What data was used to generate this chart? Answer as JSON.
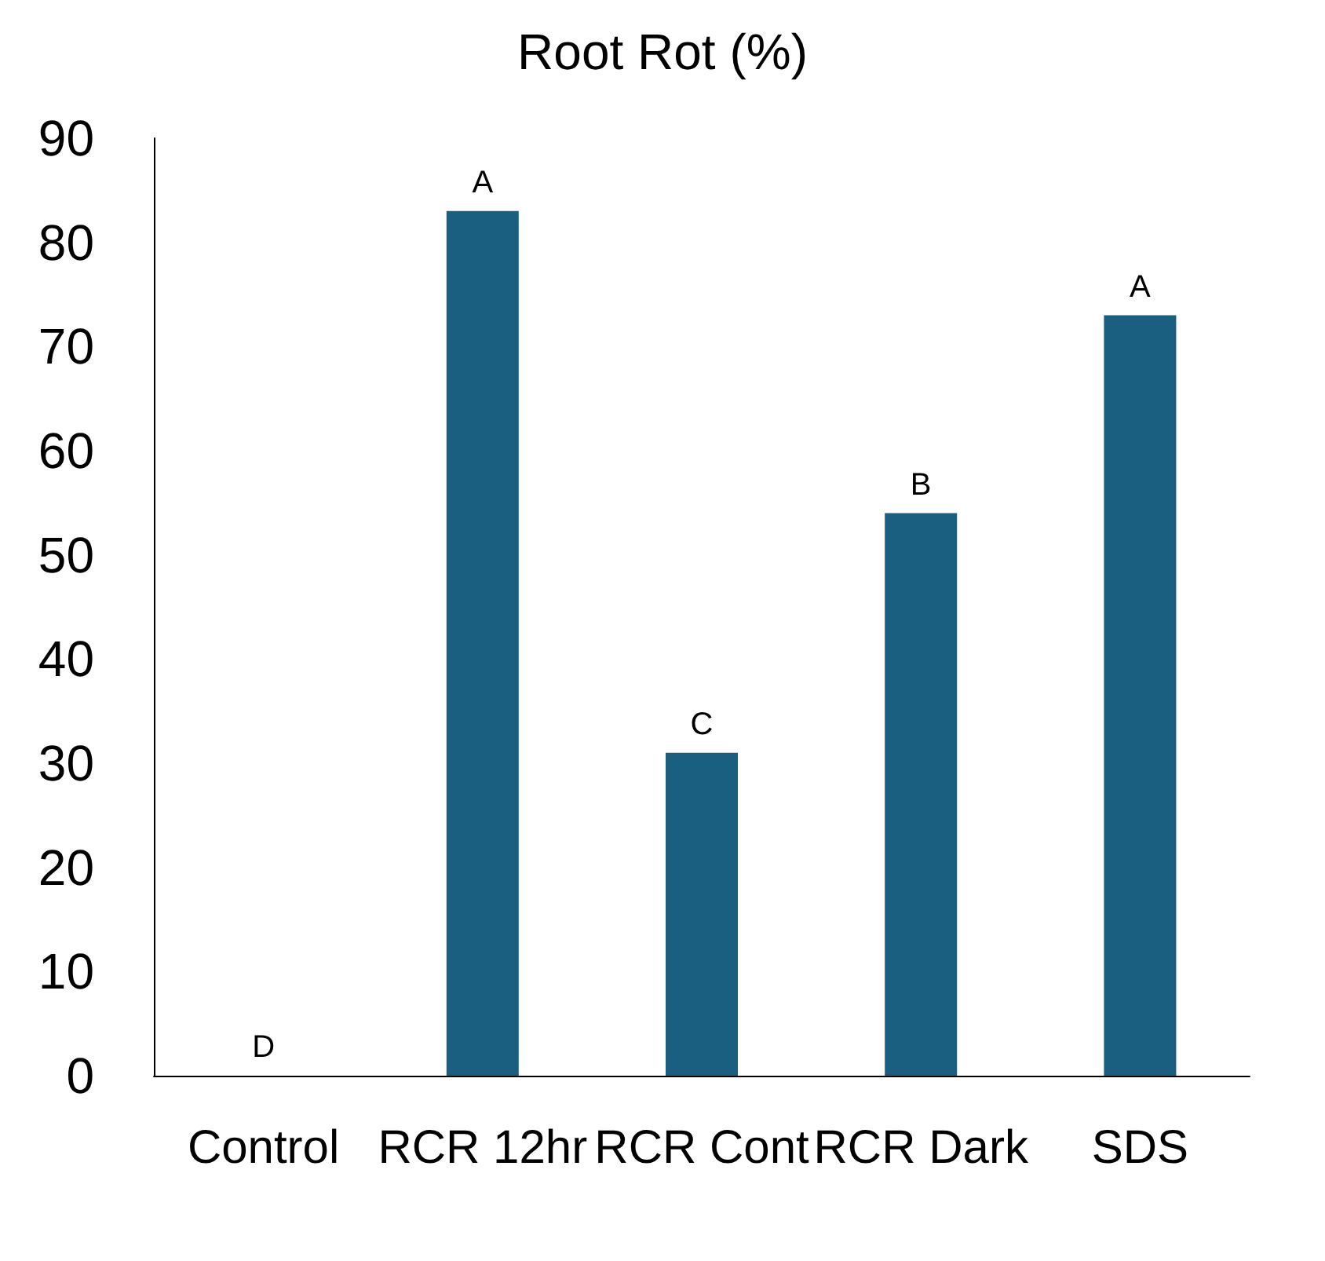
{
  "chart_data": {
    "type": "bar",
    "title": "Root Rot (%)",
    "categories": [
      "Control",
      "RCR 12hr",
      "RCR Cont",
      "RCR Dark",
      "SDS"
    ],
    "values": [
      0,
      83,
      31,
      54,
      73
    ],
    "color": "#1a5f80",
    "ylim": [
      0,
      90
    ],
    "yticks": [
      0,
      10,
      20,
      30,
      40,
      50,
      60,
      70,
      80,
      90
    ],
    "grid": false,
    "annotations": [
      {
        "text": "D",
        "x": "Control",
        "y": 0
      },
      {
        "text": "A",
        "x": "RCR 12hr",
        "y": 83
      },
      {
        "text": "C",
        "x": "RCR Cont",
        "y": 31
      },
      {
        "text": "B",
        "x": "RCR Dark",
        "y": 54
      },
      {
        "text": "A",
        "x": "SDS",
        "y": 73
      }
    ]
  }
}
